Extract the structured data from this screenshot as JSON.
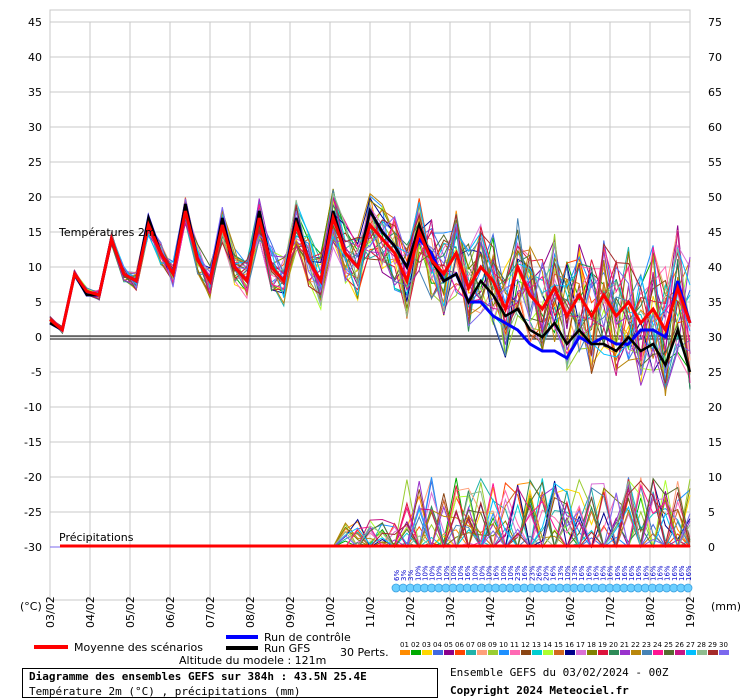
{
  "chart_data": {
    "type": "line",
    "x_dates": [
      "03/02",
      "04/02",
      "05/02",
      "06/02",
      "07/02",
      "08/02",
      "09/02",
      "10/02",
      "11/02",
      "12/02",
      "13/02",
      "14/02",
      "15/02",
      "16/02",
      "17/02",
      "18/02",
      "19/02"
    ],
    "x_unit": "(°C)",
    "right_unit": "(mm)",
    "temperature": {
      "label": "Températures 2m",
      "ylim": [
        -30,
        45
      ],
      "ticks": [
        45,
        40,
        35,
        30,
        25,
        20,
        15,
        10,
        5,
        0,
        -5,
        -10,
        -15,
        -20,
        -25,
        -30
      ],
      "mean": [
        2.5,
        1,
        9,
        6.5,
        6,
        14,
        9,
        8,
        16,
        12,
        9,
        18,
        11,
        8,
        16,
        10,
        8,
        17,
        10,
        8,
        16,
        11,
        8,
        17,
        12,
        10,
        16,
        14,
        12,
        8,
        15,
        11,
        9,
        12,
        7,
        10,
        8,
        4,
        10,
        6,
        4,
        7,
        3,
        6,
        3,
        6,
        3,
        5,
        2,
        4,
        1,
        7,
        2
      ],
      "control": [
        2,
        1,
        9,
        6,
        6,
        14,
        9,
        8,
        17,
        12,
        9,
        19,
        11,
        8,
        17,
        10,
        8,
        18,
        10,
        8,
        17,
        11,
        8,
        18,
        12,
        10,
        18,
        15,
        13,
        10,
        14,
        12,
        8,
        9,
        5,
        5,
        3,
        2,
        1,
        -1,
        -2,
        -2,
        -3,
        0,
        -1,
        0,
        -1,
        -1,
        1,
        1,
        0,
        8,
        2
      ],
      "gfs": [
        2,
        1,
        9,
        6,
        6,
        14,
        9,
        8,
        17,
        12,
        9,
        19,
        11,
        8,
        17,
        10,
        8,
        18,
        10,
        8,
        17,
        11,
        8,
        18,
        12,
        10,
        18,
        15,
        13,
        10,
        16,
        11,
        8,
        9,
        5,
        8,
        6,
        3,
        4,
        1,
        0,
        2,
        -1,
        1,
        -1,
        -1,
        -2,
        0,
        -2,
        -1,
        -4,
        1,
        -5
      ]
    },
    "precipitation": {
      "label": "Précipitations",
      "ylim": [
        0,
        75
      ],
      "ticks": [
        75,
        70,
        65,
        60,
        55,
        50,
        45,
        40,
        35,
        30,
        25,
        20,
        15,
        10,
        5,
        0
      ]
    },
    "legend": {
      "mean": "Moyenne des scénarios",
      "control": "Run de contrôle",
      "gfs": "Run GFS",
      "perts": "30 Perts.",
      "altitude": "Altitude du modele : 121m",
      "member_ids": [
        "01",
        "02",
        "03",
        "04",
        "05",
        "06",
        "07",
        "08",
        "09",
        "10",
        "11",
        "12",
        "13",
        "14",
        "15",
        "16",
        "17",
        "18",
        "19",
        "20",
        "21",
        "22",
        "23",
        "24",
        "25",
        "26",
        "27",
        "28",
        "29",
        "30"
      ]
    },
    "snow_percent": [
      "6%",
      "3%",
      "3%",
      "10%",
      "10%",
      "10%",
      "10%",
      "10%",
      "10%",
      "10%",
      "16%",
      "10%",
      "10%",
      "10%",
      "16%",
      "10%",
      "10%",
      "23%",
      "16%",
      "23%",
      "26%",
      "20%",
      "16%",
      "13%",
      "10%",
      "13%",
      "16%",
      "16%",
      "16%",
      "16%",
      "16%",
      "16%",
      "16%",
      "16%",
      "16%",
      "16%",
      "16%",
      "16%",
      "16%",
      "16%",
      "16%",
      "16%"
    ]
  },
  "footer": {
    "title": "Diagramme des ensembles GEFS sur 384h : 43.5N 25.4E",
    "subtitle": "Température 2m (°C) , précipitations (mm)",
    "ensemble": "Ensemble GEFS du 03/02/2024 - 00Z",
    "copyright": "Copyright 2024 Meteociel.fr"
  },
  "colors": {
    "mean": "#ff0000",
    "control": "#0000ff",
    "gfs": "#000000",
    "snow": "#6ccfff",
    "members": [
      "#ff8c00",
      "#00aa00",
      "#ffd700",
      "#4169e1",
      "#8b008b",
      "#ff4500",
      "#20b2aa",
      "#ffa07a",
      "#9acd32",
      "#1e90ff",
      "#ff69b4",
      "#8b4513",
      "#00ced1",
      "#adff2f",
      "#d2691e",
      "#00008b",
      "#da70d6",
      "#808000",
      "#dc143c",
      "#2e8b57",
      "#9932cc",
      "#b8860b",
      "#4682b4",
      "#ff1493",
      "#556b2f",
      "#c71585",
      "#00bfff",
      "#8fbc8f",
      "#a52a2a",
      "#7b68ee"
    ]
  }
}
